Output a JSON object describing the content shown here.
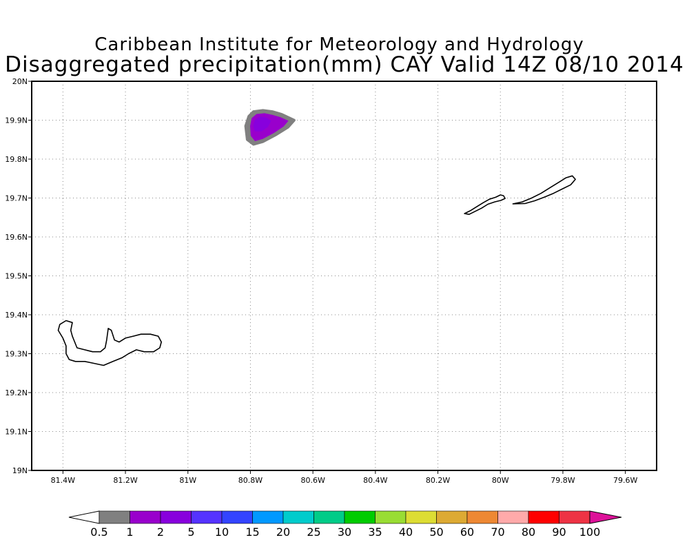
{
  "header": {
    "institute": "Caribbean Institute for Meteorology and Hydrology",
    "product": "Disaggregated precipitation(mm) CAY Valid 14Z 08/10 2014"
  },
  "map": {
    "lon_range": [
      -81.5,
      -79.5
    ],
    "lat_range": [
      19.0,
      20.0
    ],
    "lon_ticks": [
      {
        "value": -81.4,
        "label": "81.4W"
      },
      {
        "value": -81.2,
        "label": "81.2W"
      },
      {
        "value": -81.0,
        "label": "81W"
      },
      {
        "value": -80.8,
        "label": "80.8W"
      },
      {
        "value": -80.6,
        "label": "80.6W"
      },
      {
        "value": -80.4,
        "label": "80.4W"
      },
      {
        "value": -80.2,
        "label": "80.2W"
      },
      {
        "value": -80.0,
        "label": "80W"
      },
      {
        "value": -79.8,
        "label": "79.8W"
      },
      {
        "value": -79.6,
        "label": "79.6W"
      }
    ],
    "lat_ticks": [
      {
        "value": 20.0,
        "label": "20N"
      },
      {
        "value": 19.9,
        "label": "19.9N"
      },
      {
        "value": 19.8,
        "label": "19.8N"
      },
      {
        "value": 19.7,
        "label": "19.7N"
      },
      {
        "value": 19.6,
        "label": "19.6N"
      },
      {
        "value": 19.5,
        "label": "19.5N"
      },
      {
        "value": 19.4,
        "label": "19.4N"
      },
      {
        "value": 19.3,
        "label": "19.3N"
      },
      {
        "value": 19.2,
        "label": "19.2N"
      },
      {
        "value": 19.1,
        "label": "19.1N"
      },
      {
        "value": 19.0,
        "label": "19N"
      }
    ],
    "grid": "dotted",
    "islands": [
      {
        "name": "grand-cayman",
        "outline": [
          [
            -81.41,
            19.375
          ],
          [
            -81.39,
            19.385
          ],
          [
            -81.37,
            19.38
          ],
          [
            -81.375,
            19.36
          ],
          [
            -81.37,
            19.345
          ],
          [
            -81.355,
            19.315
          ],
          [
            -81.33,
            19.31
          ],
          [
            -81.305,
            19.305
          ],
          [
            -81.28,
            19.305
          ],
          [
            -81.265,
            19.315
          ],
          [
            -81.26,
            19.335
          ],
          [
            -81.255,
            19.365
          ],
          [
            -81.245,
            19.36
          ],
          [
            -81.235,
            19.335
          ],
          [
            -81.22,
            19.33
          ],
          [
            -81.2,
            19.34
          ],
          [
            -81.175,
            19.345
          ],
          [
            -81.15,
            19.35
          ],
          [
            -81.12,
            19.35
          ],
          [
            -81.095,
            19.345
          ],
          [
            -81.085,
            19.33
          ],
          [
            -81.09,
            19.315
          ],
          [
            -81.11,
            19.305
          ],
          [
            -81.14,
            19.305
          ],
          [
            -81.165,
            19.31
          ],
          [
            -81.19,
            19.3
          ],
          [
            -81.21,
            19.29
          ],
          [
            -81.24,
            19.28
          ],
          [
            -81.27,
            19.27
          ],
          [
            -81.3,
            19.275
          ],
          [
            -81.33,
            19.28
          ],
          [
            -81.36,
            19.28
          ],
          [
            -81.38,
            19.285
          ],
          [
            -81.39,
            19.3
          ],
          [
            -81.39,
            19.32
          ],
          [
            -81.4,
            19.34
          ],
          [
            -81.415,
            19.36
          ],
          [
            -81.41,
            19.375
          ]
        ]
      },
      {
        "name": "little-cayman",
        "outline": [
          [
            -80.115,
            19.66
          ],
          [
            -80.095,
            19.668
          ],
          [
            -80.075,
            19.678
          ],
          [
            -80.055,
            19.688
          ],
          [
            -80.035,
            19.697
          ],
          [
            -80.015,
            19.702
          ],
          [
            -80.0,
            19.708
          ],
          [
            -79.99,
            19.706
          ],
          [
            -79.985,
            19.699
          ],
          [
            -79.998,
            19.694
          ],
          [
            -80.018,
            19.69
          ],
          [
            -80.04,
            19.684
          ],
          [
            -80.06,
            19.674
          ],
          [
            -80.08,
            19.666
          ],
          [
            -80.1,
            19.658
          ],
          [
            -80.115,
            19.66
          ]
        ]
      },
      {
        "name": "cayman-brac",
        "outline": [
          [
            -79.96,
            19.685
          ],
          [
            -79.93,
            19.69
          ],
          [
            -79.9,
            19.7
          ],
          [
            -79.87,
            19.712
          ],
          [
            -79.84,
            19.727
          ],
          [
            -79.81,
            19.742
          ],
          [
            -79.79,
            19.752
          ],
          [
            -79.77,
            19.757
          ],
          [
            -79.76,
            19.748
          ],
          [
            -79.775,
            19.734
          ],
          [
            -79.8,
            19.724
          ],
          [
            -79.83,
            19.712
          ],
          [
            -79.86,
            19.702
          ],
          [
            -79.89,
            19.693
          ],
          [
            -79.92,
            19.686
          ],
          [
            -79.96,
            19.685
          ]
        ]
      }
    ],
    "precipitation": [
      {
        "threshold": 0.5,
        "color": "#808080",
        "outline": [
          [
            -80.815,
            19.885
          ],
          [
            -80.805,
            19.91
          ],
          [
            -80.79,
            19.922
          ],
          [
            -80.76,
            19.925
          ],
          [
            -80.73,
            19.922
          ],
          [
            -80.7,
            19.915
          ],
          [
            -80.66,
            19.9
          ],
          [
            -80.68,
            19.882
          ],
          [
            -80.72,
            19.862
          ],
          [
            -80.76,
            19.845
          ],
          [
            -80.79,
            19.838
          ],
          [
            -80.81,
            19.85
          ],
          [
            -80.815,
            19.885
          ]
        ]
      },
      {
        "threshold": 1,
        "color": "#9900CC",
        "outline": [
          [
            -80.8,
            19.885
          ],
          [
            -80.795,
            19.905
          ],
          [
            -80.78,
            19.915
          ],
          [
            -80.755,
            19.917
          ],
          [
            -80.73,
            19.913
          ],
          [
            -80.705,
            19.907
          ],
          [
            -80.68,
            19.898
          ],
          [
            -80.695,
            19.884
          ],
          [
            -80.725,
            19.868
          ],
          [
            -80.76,
            19.853
          ],
          [
            -80.785,
            19.847
          ],
          [
            -80.798,
            19.86
          ],
          [
            -80.8,
            19.885
          ]
        ]
      },
      {
        "threshold": 2,
        "color": "#8800DD",
        "outline": [
          [
            -80.79,
            19.885
          ],
          [
            -80.785,
            19.9
          ],
          [
            -80.77,
            19.908
          ],
          [
            -80.75,
            19.906
          ],
          [
            -80.735,
            19.898
          ],
          [
            -80.745,
            19.883
          ],
          [
            -80.765,
            19.872
          ],
          [
            -80.785,
            19.872
          ],
          [
            -80.79,
            19.885
          ]
        ]
      }
    ]
  },
  "colorbar": {
    "labels": [
      "0.5",
      "1",
      "2",
      "5",
      "10",
      "15",
      "20",
      "25",
      "30",
      "35",
      "40",
      "50",
      "60",
      "70",
      "80",
      "90",
      "100"
    ],
    "colors": [
      "#808080",
      "#9900CC",
      "#8800DD",
      "#5533FF",
      "#3344FF",
      "#0099FF",
      "#00CCCC",
      "#00CC88",
      "#00CC00",
      "#99DD33",
      "#DDDD33",
      "#DDAA33",
      "#EE8833",
      "#FFAAAA",
      "#FF0000",
      "#EE3344"
    ],
    "under_color": "#FFFFFF",
    "over_color": "#DD1199"
  }
}
